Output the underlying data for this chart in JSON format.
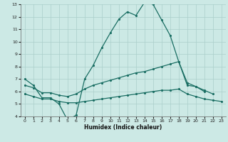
{
  "xlabel": "Humidex (Indice chaleur)",
  "xlim": [
    -0.5,
    23.5
  ],
  "ylim": [
    4,
    13
  ],
  "xticks": [
    0,
    1,
    2,
    3,
    4,
    5,
    6,
    7,
    8,
    9,
    10,
    11,
    12,
    13,
    14,
    15,
    16,
    17,
    18,
    19,
    20,
    21,
    22,
    23
  ],
  "yticks": [
    4,
    5,
    6,
    7,
    8,
    9,
    10,
    11,
    12,
    13
  ],
  "bg_color": "#cce9e5",
  "grid_color": "#aacfca",
  "line_color": "#1a6e63",
  "line1_x": [
    0,
    1,
    2,
    3,
    4,
    5,
    6,
    7,
    8,
    9,
    10,
    11,
    12,
    13,
    14,
    15,
    16,
    17,
    18,
    19,
    20,
    21
  ],
  "line1_y": [
    7.0,
    6.5,
    5.5,
    5.5,
    5.0,
    3.7,
    4.1,
    7.0,
    8.1,
    9.5,
    10.7,
    11.8,
    12.4,
    12.1,
    13.15,
    13.0,
    11.75,
    10.5,
    8.4,
    6.5,
    6.4,
    6.0
  ],
  "line2_x": [
    0,
    1,
    2,
    3,
    4,
    5,
    6,
    7,
    8,
    9,
    10,
    11,
    12,
    13,
    14,
    15,
    16,
    17,
    18,
    19,
    20,
    21,
    22,
    23
  ],
  "line2_y": [
    6.5,
    6.3,
    5.9,
    5.9,
    5.7,
    5.6,
    5.8,
    6.2,
    6.5,
    6.7,
    6.9,
    7.1,
    7.3,
    7.5,
    7.6,
    7.8,
    8.0,
    8.2,
    8.4,
    6.7,
    6.4,
    6.1,
    5.8,
    null
  ],
  "line3_x": [
    0,
    1,
    2,
    3,
    4,
    5,
    6,
    7,
    8,
    9,
    10,
    11,
    12,
    13,
    14,
    15,
    16,
    17,
    18,
    19,
    20,
    21,
    22,
    23
  ],
  "line3_y": [
    5.8,
    5.6,
    5.4,
    5.4,
    5.2,
    5.1,
    5.1,
    5.2,
    5.3,
    5.4,
    5.5,
    5.6,
    5.7,
    5.8,
    5.9,
    6.0,
    6.1,
    6.1,
    6.2,
    5.8,
    5.6,
    5.4,
    5.3,
    5.2
  ]
}
